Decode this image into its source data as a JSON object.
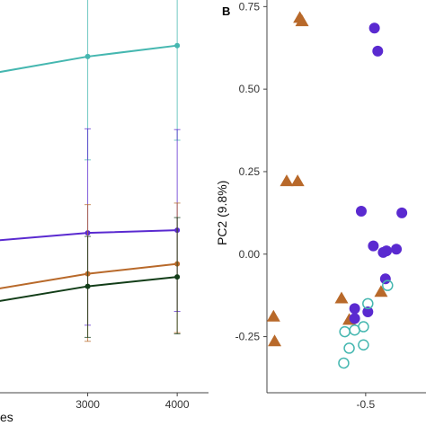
{
  "chart_data": [
    {
      "type": "line",
      "panel": "",
      "xlabel": "es",
      "ylabel": "",
      "x_ticks": [
        "3000",
        "4000"
      ],
      "xlim": [
        2020,
        4350
      ],
      "ylim": [
        0,
        10
      ],
      "grid": false,
      "error_bars": true,
      "series": [
        {
          "color": "#45b7b0",
          "x": [
            2000,
            3000,
            4000
          ],
          "values": [
            8.16,
            8.56,
            8.84
          ],
          "err_low": [
            null,
            5.93,
            6.43
          ],
          "err_high": [
            null,
            11.57,
            11.9
          ]
        },
        {
          "color": "#5a2ad0",
          "x": [
            2000,
            3000,
            4000
          ],
          "values": [
            3.88,
            4.07,
            4.14
          ],
          "err_low": [
            null,
            1.72,
            2.07
          ],
          "err_high": [
            null,
            6.72,
            6.7
          ]
        },
        {
          "color": "#b8692a",
          "x": [
            2000,
            3000,
            4000
          ],
          "values": [
            2.65,
            3.03,
            3.28
          ],
          "err_low": [
            null,
            1.31,
            1.53
          ],
          "err_high": [
            null,
            4.79,
            4.83
          ]
        },
        {
          "color": "#123d18",
          "x": [
            2000,
            3000,
            4000
          ],
          "values": [
            2.33,
            2.71,
            2.95
          ],
          "err_low": [
            null,
            1.41,
            1.5
          ],
          "err_high": [
            null,
            3.98,
            4.46
          ]
        }
      ]
    },
    {
      "type": "scatter",
      "panel": "B",
      "xlabel": "",
      "ylabel": "PC2 (9.8%)",
      "x_ticks": [
        "-0.5"
      ],
      "y_ticks": [
        "0.75",
        "0.50",
        "0.25",
        "0.00",
        "-0.25"
      ],
      "xlim": [
        -0.95,
        -0.225
      ],
      "ylim": [
        -0.42,
        0.77
      ],
      "grid": false,
      "series": [
        {
          "marker": "filled-triangle",
          "color": "#b8692a",
          "points": [
            [
              -0.8,
              0.715
            ],
            [
              -0.79,
              0.705
            ],
            [
              -0.86,
              0.22
            ],
            [
              -0.81,
              0.22
            ],
            [
              -0.61,
              -0.135
            ],
            [
              -0.575,
              -0.2
            ],
            [
              -0.43,
              -0.115
            ],
            [
              -0.92,
              -0.19
            ],
            [
              -0.915,
              -0.265
            ]
          ]
        },
        {
          "marker": "filled-circle",
          "color": "#5a2ad0",
          "points": [
            [
              -0.46,
              0.685
            ],
            [
              -0.445,
              0.615
            ],
            [
              -0.52,
              0.13
            ],
            [
              -0.335,
              0.125
            ],
            [
              -0.465,
              0.025
            ],
            [
              -0.42,
              0.005
            ],
            [
              -0.405,
              0.01
            ],
            [
              -0.36,
              0.015
            ],
            [
              -0.55,
              -0.165
            ],
            [
              -0.55,
              -0.195
            ],
            [
              -0.49,
              -0.175
            ],
            [
              -0.41,
              -0.075
            ]
          ]
        },
        {
          "marker": "open-circle",
          "color": "#45b7b0",
          "points": [
            [
              -0.595,
              -0.235
            ],
            [
              -0.55,
              -0.23
            ],
            [
              -0.51,
              -0.22
            ],
            [
              -0.575,
              -0.285
            ],
            [
              -0.51,
              -0.275
            ],
            [
              -0.6,
              -0.33
            ],
            [
              -0.49,
              -0.15
            ],
            [
              -0.4,
              -0.095
            ]
          ]
        }
      ]
    }
  ]
}
